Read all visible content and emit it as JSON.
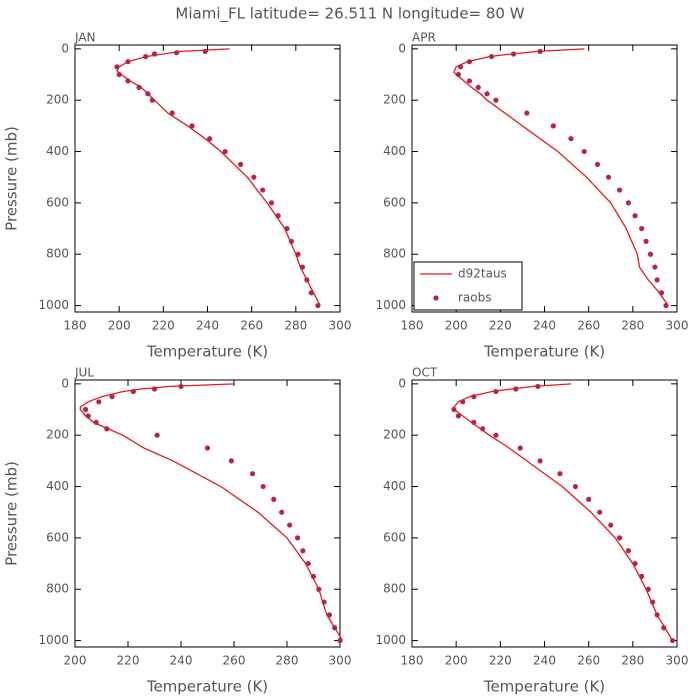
{
  "title": "Miami_FL   latitude= 26.511 N longitude= 80 W",
  "chart_data": [
    {
      "type": "line",
      "label": "JAN",
      "xlabel": "Temperature (K)",
      "ylabel": "Pressure (mb)",
      "xlim": [
        180,
        300
      ],
      "xticks": [
        180,
        200,
        220,
        240,
        260,
        280,
        300
      ],
      "ylim": [
        1025,
        -15
      ],
      "yticks": [
        0,
        200,
        400,
        600,
        800,
        1000
      ],
      "series": [
        {
          "style": "line",
          "color": "#e41a1c",
          "x": [
            250,
            228,
            220,
            212,
            204,
            200,
            199,
            201,
            205,
            210,
            216,
            222,
            231,
            239,
            246,
            258,
            267,
            275,
            280,
            282,
            285,
            288,
            291
          ],
          "y": [
            0,
            10,
            20,
            30,
            50,
            70,
            85,
            100,
            125,
            150,
            200,
            250,
            300,
            350,
            400,
            500,
            600,
            700,
            800,
            850,
            900,
            950,
            1000
          ]
        },
        {
          "style": "markers",
          "color": "#b8234e",
          "x": [
            239,
            226,
            216,
            212,
            204,
            199,
            200,
            204,
            209,
            213,
            215,
            224,
            233,
            241,
            248,
            255,
            261,
            265,
            269,
            272,
            276,
            278,
            281,
            283,
            285,
            287,
            290
          ],
          "y": [
            10,
            15,
            20,
            30,
            50,
            70,
            100,
            125,
            150,
            175,
            200,
            250,
            300,
            350,
            400,
            450,
            500,
            550,
            600,
            650,
            700,
            750,
            800,
            850,
            900,
            950,
            1000
          ]
        }
      ]
    },
    {
      "type": "line",
      "label": "APR",
      "xlabel": "Temperature (K)",
      "legend": "lower left",
      "xlim": [
        180,
        300
      ],
      "xticks": [
        180,
        200,
        220,
        240,
        260,
        280,
        300
      ],
      "ylim": [
        1025,
        -15
      ],
      "yticks": [
        0,
        200,
        400,
        600,
        800,
        1000
      ],
      "series": [
        {
          "name": "d92taus",
          "style": "line",
          "color": "#e41a1c",
          "x": [
            258,
            237,
            225,
            215,
            205,
            200,
            199,
            200,
            207,
            211,
            214,
            222,
            230,
            246,
            259,
            270,
            277,
            282,
            283,
            287,
            292,
            296
          ],
          "y": [
            0,
            10,
            20,
            30,
            50,
            70,
            90,
            100,
            150,
            175,
            200,
            250,
            300,
            400,
            500,
            600,
            700,
            800,
            850,
            900,
            950,
            1000
          ]
        },
        {
          "name": "raobs",
          "style": "markers",
          "color": "#b8234e",
          "x": [
            238,
            226,
            216,
            206,
            202,
            201,
            206,
            210,
            214,
            218,
            232,
            244,
            252,
            258,
            264,
            269,
            274,
            278,
            281,
            284,
            286,
            288,
            290,
            291,
            293,
            295
          ],
          "y": [
            10,
            20,
            30,
            50,
            70,
            100,
            125,
            150,
            175,
            200,
            250,
            300,
            350,
            400,
            450,
            500,
            550,
            600,
            650,
            700,
            750,
            800,
            850,
            900,
            950,
            1000
          ]
        }
      ]
    },
    {
      "type": "line",
      "label": "JUL",
      "xlabel": "Temperature (K)",
      "ylabel": "Pressure (mb)",
      "xlim": [
        200,
        300
      ],
      "xticks": [
        200,
        220,
        240,
        260,
        280,
        300
      ],
      "ylim": [
        1025,
        -15
      ],
      "yticks": [
        0,
        200,
        400,
        600,
        800,
        1000
      ],
      "series": [
        {
          "style": "line",
          "color": "#e41a1c",
          "x": [
            260,
            236,
            225,
            218,
            210,
            205,
            202,
            202,
            204,
            207,
            218,
            226,
            237,
            255,
            269,
            280,
            287,
            292,
            295,
            301
          ],
          "y": [
            0,
            10,
            20,
            30,
            50,
            70,
            90,
            100,
            125,
            150,
            200,
            250,
            300,
            400,
            500,
            600,
            700,
            800,
            900,
            1000
          ]
        },
        {
          "style": "markers",
          "color": "#b8234e",
          "x": [
            240,
            230,
            222,
            214,
            209,
            204,
            205,
            208,
            212,
            231,
            250,
            259,
            267,
            271,
            275,
            278,
            281,
            284,
            286,
            288,
            290,
            292,
            294,
            296,
            298,
            300
          ],
          "y": [
            10,
            20,
            30,
            50,
            70,
            100,
            125,
            150,
            175,
            200,
            250,
            300,
            350,
            400,
            450,
            500,
            550,
            600,
            650,
            700,
            750,
            800,
            850,
            900,
            950,
            1000
          ]
        }
      ]
    },
    {
      "type": "line",
      "label": "OCT",
      "xlabel": "Temperature (K)",
      "xlim": [
        180,
        300
      ],
      "xticks": [
        180,
        200,
        220,
        240,
        260,
        280,
        300
      ],
      "ylim": [
        1025,
        -15
      ],
      "yticks": [
        0,
        200,
        400,
        600,
        800,
        1000
      ],
      "series": [
        {
          "style": "line",
          "color": "#e41a1c",
          "x": [
            252,
            235,
            225,
            216,
            206,
            201,
            199,
            199,
            207,
            215,
            224,
            232,
            248,
            261,
            272,
            280,
            286,
            291,
            298
          ],
          "y": [
            0,
            10,
            20,
            30,
            50,
            70,
            90,
            100,
            150,
            200,
            250,
            300,
            400,
            500,
            600,
            700,
            800,
            900,
            1000
          ]
        },
        {
          "style": "markers",
          "color": "#b8234e",
          "x": [
            237,
            227,
            218,
            208,
            203,
            199,
            201,
            208,
            212,
            218,
            229,
            238,
            247,
            254,
            260,
            265,
            270,
            274,
            278,
            281,
            284,
            287,
            289,
            291,
            294,
            298
          ],
          "y": [
            10,
            20,
            30,
            50,
            70,
            100,
            125,
            150,
            175,
            200,
            250,
            300,
            350,
            400,
            450,
            500,
            550,
            600,
            650,
            700,
            750,
            800,
            850,
            900,
            950,
            1000
          ]
        }
      ]
    }
  ]
}
